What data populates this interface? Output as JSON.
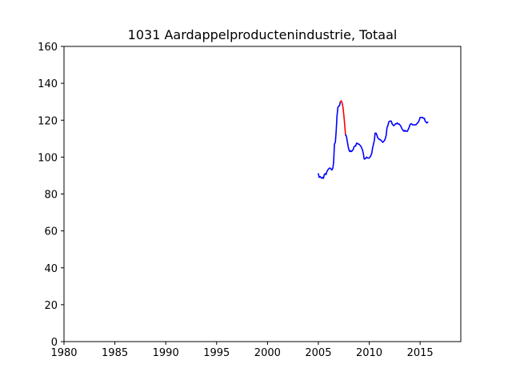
{
  "chart_data": {
    "type": "line",
    "title": "1031 Aardappelproductenindustrie, Totaal",
    "xlabel": "",
    "ylabel": "",
    "xlim": [
      1980,
      2019
    ],
    "ylim": [
      0,
      160
    ],
    "x_ticks": [
      1980,
      1985,
      1990,
      1995,
      2000,
      2005,
      2010,
      2015
    ],
    "y_ticks": [
      0,
      20,
      40,
      60,
      80,
      100,
      120,
      140,
      160
    ],
    "grid": false,
    "legend": "none",
    "series": [
      {
        "color": "#0000ff",
        "points": [
          [
            2005.0,
            91
          ],
          [
            2005.08,
            89
          ],
          [
            2005.17,
            89.5
          ],
          [
            2005.25,
            89
          ],
          [
            2005.33,
            88.5
          ],
          [
            2005.42,
            89
          ],
          [
            2005.5,
            88.5
          ],
          [
            2005.58,
            90.5
          ],
          [
            2005.67,
            91
          ],
          [
            2005.75,
            90.5
          ],
          [
            2005.83,
            92
          ],
          [
            2005.92,
            93
          ],
          [
            2006.0,
            93.5
          ],
          [
            2006.08,
            94
          ],
          [
            2006.17,
            94
          ],
          [
            2006.25,
            93.5
          ],
          [
            2006.33,
            93
          ],
          [
            2006.42,
            94
          ],
          [
            2006.5,
            97
          ],
          [
            2006.58,
            107
          ],
          [
            2006.67,
            108
          ],
          [
            2006.75,
            114
          ],
          [
            2006.83,
            122
          ],
          [
            2006.92,
            127
          ],
          [
            2007.0,
            127.5
          ],
          [
            2007.08,
            128
          ],
          [
            2007.17,
            130
          ]
        ]
      },
      {
        "color": "#ff0000",
        "points": [
          [
            2007.17,
            130
          ],
          [
            2007.25,
            130.5
          ],
          [
            2007.33,
            129.5
          ],
          [
            2007.42,
            127
          ],
          [
            2007.5,
            123
          ],
          [
            2007.58,
            118
          ],
          [
            2007.67,
            112
          ]
        ]
      },
      {
        "color": "#0000ff",
        "points": [
          [
            2007.67,
            112
          ],
          [
            2007.75,
            111.5
          ],
          [
            2007.83,
            109
          ],
          [
            2007.92,
            106
          ],
          [
            2008.0,
            104
          ],
          [
            2008.08,
            103
          ],
          [
            2008.17,
            103.5
          ],
          [
            2008.25,
            103
          ],
          [
            2008.33,
            103.5
          ],
          [
            2008.42,
            104
          ],
          [
            2008.5,
            105.5
          ],
          [
            2008.58,
            106
          ],
          [
            2008.67,
            106
          ],
          [
            2008.75,
            107.5
          ],
          [
            2008.83,
            107.5
          ],
          [
            2008.92,
            107
          ],
          [
            2009.0,
            107
          ],
          [
            2009.08,
            106.5
          ],
          [
            2009.17,
            106
          ],
          [
            2009.25,
            105
          ],
          [
            2009.33,
            104
          ],
          [
            2009.42,
            102
          ],
          [
            2009.5,
            99
          ],
          [
            2009.58,
            99
          ],
          [
            2009.67,
            99.5
          ],
          [
            2009.75,
            100
          ],
          [
            2009.83,
            99.5
          ],
          [
            2009.92,
            99.5
          ],
          [
            2010.0,
            99.5
          ],
          [
            2010.08,
            100
          ],
          [
            2010.17,
            101
          ],
          [
            2010.25,
            102
          ],
          [
            2010.33,
            105
          ],
          [
            2010.42,
            107
          ],
          [
            2010.5,
            109
          ],
          [
            2010.58,
            113
          ],
          [
            2010.67,
            113
          ],
          [
            2010.75,
            112
          ],
          [
            2010.83,
            110.5
          ],
          [
            2010.92,
            110
          ],
          [
            2011.0,
            109.5
          ],
          [
            2011.08,
            109.5
          ],
          [
            2011.17,
            109
          ],
          [
            2011.25,
            108.5
          ],
          [
            2011.33,
            108
          ],
          [
            2011.42,
            108.5
          ],
          [
            2011.5,
            109
          ],
          [
            2011.58,
            110
          ],
          [
            2011.67,
            112
          ],
          [
            2011.75,
            116
          ],
          [
            2011.83,
            117
          ],
          [
            2011.92,
            119
          ],
          [
            2012.0,
            119.5
          ],
          [
            2012.08,
            119.5
          ],
          [
            2012.17,
            119.5
          ],
          [
            2012.25,
            118
          ],
          [
            2012.33,
            117.5
          ],
          [
            2012.42,
            117
          ],
          [
            2012.5,
            117.5
          ],
          [
            2012.58,
            118
          ],
          [
            2012.67,
            118
          ],
          [
            2012.75,
            118.5
          ],
          [
            2012.83,
            118
          ],
          [
            2012.92,
            118
          ],
          [
            2013.0,
            117.5
          ],
          [
            2013.08,
            117
          ],
          [
            2013.17,
            116
          ],
          [
            2013.25,
            115
          ],
          [
            2013.33,
            114.5
          ],
          [
            2013.42,
            114
          ],
          [
            2013.5,
            114.5
          ],
          [
            2013.58,
            114
          ],
          [
            2013.67,
            114
          ],
          [
            2013.75,
            114
          ],
          [
            2013.83,
            115
          ],
          [
            2013.92,
            116
          ],
          [
            2014.0,
            117.5
          ],
          [
            2014.08,
            118
          ],
          [
            2014.17,
            118
          ],
          [
            2014.25,
            117.5
          ],
          [
            2014.33,
            117.5
          ],
          [
            2014.42,
            117.5
          ],
          [
            2014.5,
            117.5
          ],
          [
            2014.58,
            117.5
          ],
          [
            2014.67,
            118
          ],
          [
            2014.75,
            118.5
          ],
          [
            2014.83,
            119
          ],
          [
            2014.92,
            120
          ],
          [
            2015.0,
            121.5
          ],
          [
            2015.08,
            121.5
          ],
          [
            2015.17,
            121.5
          ],
          [
            2015.25,
            121.5
          ],
          [
            2015.33,
            121
          ],
          [
            2015.42,
            121
          ],
          [
            2015.5,
            119.5
          ],
          [
            2015.58,
            119
          ],
          [
            2015.67,
            118.5
          ],
          [
            2015.75,
            119
          ]
        ]
      }
    ]
  }
}
